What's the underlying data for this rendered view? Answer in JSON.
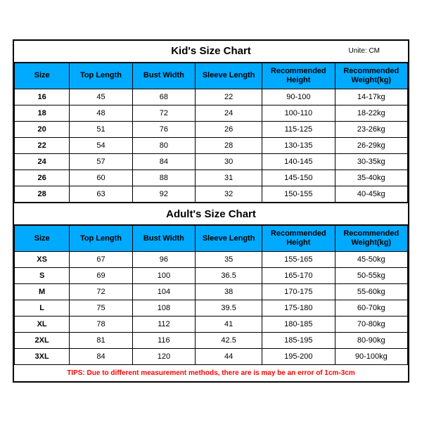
{
  "kids": {
    "title": "Kid's Size Chart",
    "unit": "Unite: CM",
    "headers": [
      "Size",
      "Top Length",
      "Bust Width",
      "Sleeve Length",
      "Recommended Height",
      "Recommended Weight(kg)"
    ],
    "rows": [
      [
        "16",
        "45",
        "68",
        "22",
        "90-100",
        "14-17kg"
      ],
      [
        "18",
        "48",
        "72",
        "24",
        "100-110",
        "18-22kg"
      ],
      [
        "20",
        "51",
        "76",
        "26",
        "115-125",
        "23-26kg"
      ],
      [
        "22",
        "54",
        "80",
        "28",
        "130-135",
        "26-29kg"
      ],
      [
        "24",
        "57",
        "84",
        "30",
        "140-145",
        "30-35kg"
      ],
      [
        "26",
        "60",
        "88",
        "31",
        "145-150",
        "35-40kg"
      ],
      [
        "28",
        "63",
        "92",
        "32",
        "150-155",
        "40-45kg"
      ]
    ]
  },
  "adults": {
    "title": "Adult's Size Chart",
    "headers": [
      "Size",
      "Top Length",
      "Bust Width",
      "Sleeve Length",
      "Recommended Height",
      "Recommended Weight(kg)"
    ],
    "rows": [
      [
        "XS",
        "67",
        "96",
        "35",
        "155-165",
        "45-50kg"
      ],
      [
        "S",
        "69",
        "100",
        "36.5",
        "165-170",
        "50-55kg"
      ],
      [
        "M",
        "72",
        "104",
        "38",
        "170-175",
        "55-60kg"
      ],
      [
        "L",
        "75",
        "108",
        "39.5",
        "175-180",
        "60-70kg"
      ],
      [
        "XL",
        "78",
        "112",
        "41",
        "180-185",
        "70-80kg"
      ],
      [
        "2XL",
        "81",
        "116",
        "42.5",
        "185-195",
        "80-90kg"
      ],
      [
        "3XL",
        "84",
        "120",
        "44",
        "195-200",
        "90-100kg"
      ]
    ]
  },
  "tips": "TIPS: Due to different measurement methods, there are is may be an error of 1cm-3cm",
  "styles": {
    "header_bg": "#00aaff",
    "border_color": "#000000",
    "tips_color": "#ff0000",
    "bg": "#ffffff",
    "font_family": "Arial, sans-serif",
    "title_fontsize": 15,
    "header_fontsize": 11,
    "cell_fontsize": 11,
    "tips_fontsize": 10,
    "col_widths_pct": [
      14,
      16,
      16,
      17,
      18.5,
      18.5
    ]
  }
}
